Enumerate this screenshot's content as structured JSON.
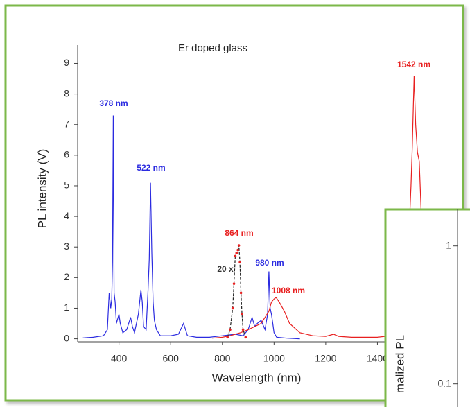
{
  "chart_data": [
    {
      "type": "line",
      "title": "Er doped glass",
      "x_label": "Wavelength (nm)",
      "y_label": "PL intensity (V)",
      "xlim": [
        240,
        1600
      ],
      "ylim": [
        -0.1,
        9.6
      ],
      "xticks": [
        400,
        600,
        800,
        1000,
        1200,
        1400
      ],
      "yticks": [
        0,
        1,
        2,
        3,
        4,
        5,
        6,
        7,
        8,
        9
      ],
      "series": [
        {
          "color": "#2b2be0",
          "x": [
            260,
            300,
            340,
            355,
            362,
            368,
            372,
            375,
            378,
            381,
            385,
            390,
            400,
            405,
            415,
            430,
            445,
            452,
            460,
            475,
            485,
            490,
            495,
            505,
            512,
            517,
            522,
            527,
            532,
            537,
            545,
            560,
            600,
            630,
            650,
            665,
            700,
            750,
            800,
            850,
            880,
            900,
            915,
            925,
            935,
            950,
            965,
            975,
            980,
            985,
            990,
            995,
            1000,
            1010,
            1050,
            1100
          ],
          "values": [
            0.03,
            0.05,
            0.1,
            0.3,
            1.5,
            1.0,
            1.3,
            2.5,
            7.3,
            1.5,
            1.2,
            0.5,
            0.8,
            0.5,
            0.2,
            0.3,
            0.7,
            0.4,
            0.2,
            0.8,
            1.6,
            1.2,
            0.4,
            0.3,
            1.5,
            2.6,
            5.1,
            2.8,
            1.2,
            0.6,
            0.3,
            0.1,
            0.1,
            0.15,
            0.5,
            0.1,
            0.05,
            0.05,
            0.1,
            0.15,
            0.1,
            0.3,
            0.7,
            0.4,
            0.5,
            0.6,
            0.3,
            0.8,
            2.2,
            1.0,
            0.8,
            0.5,
            0.2,
            0.05,
            0.02,
            0.0
          ]
        },
        {
          "color": "#e82020",
          "x": [
            760,
            800,
            830,
            850,
            870,
            900,
            950,
            980,
            990,
            1000,
            1008,
            1020,
            1040,
            1060,
            1100,
            1150,
            1200,
            1230,
            1250,
            1300,
            1350,
            1400,
            1450,
            1480,
            1500,
            1510,
            1520,
            1530,
            1535,
            1542,
            1548,
            1555,
            1562,
            1570,
            1580,
            1590
          ],
          "values": [
            0.02,
            0.05,
            0.1,
            0.15,
            0.2,
            0.3,
            0.5,
            0.9,
            1.2,
            1.3,
            1.35,
            1.2,
            0.9,
            0.5,
            0.2,
            0.1,
            0.08,
            0.15,
            0.08,
            0.05,
            0.05,
            0.05,
            0.1,
            0.2,
            0.5,
            1.5,
            3,
            5,
            6.3,
            8.6,
            7,
            6.1,
            5.8,
            4,
            2,
            1
          ]
        },
        {
          "color": "#222222",
          "dashed": true,
          "marker_color": "#e82020",
          "x": [
            820,
            830,
            840,
            845,
            850,
            855,
            860,
            864,
            868,
            872,
            876,
            880,
            890
          ],
          "values": [
            0.05,
            0.3,
            1.0,
            1.8,
            2.7,
            2.8,
            2.9,
            3.05,
            2.5,
            1.5,
            0.8,
            0.3,
            0.05
          ]
        }
      ],
      "annotations": [
        {
          "text": "378 nm",
          "color": "#2b2be0"
        },
        {
          "text": "522 nm",
          "color": "#2b2be0"
        },
        {
          "text": "864 nm",
          "color": "#e82020"
        },
        {
          "text": "20 x",
          "color": "#333333"
        },
        {
          "text": "980 nm",
          "color": "#2b2be0"
        },
        {
          "text": "1008 nm",
          "color": "#e82020"
        },
        {
          "text": "1542 nm",
          "color": "#e82020"
        }
      ]
    },
    {
      "type": "line",
      "y_label": "malized PL",
      "log_y": true,
      "ylim": [
        0.068,
        1.84
      ],
      "yticks": [
        1,
        0.1
      ]
    }
  ]
}
